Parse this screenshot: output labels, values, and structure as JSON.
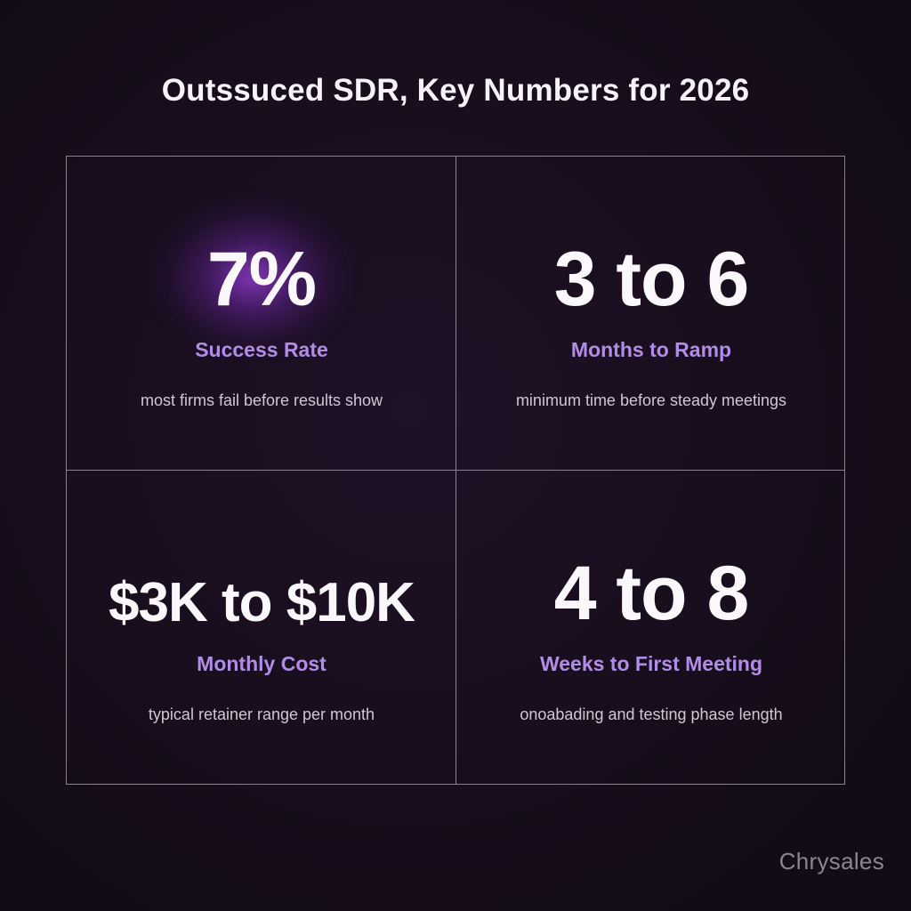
{
  "title": "Outssuced SDR, Key Numbers for 2026",
  "stats": [
    {
      "value": "7%",
      "label": "Success Rate",
      "description": "most firms fail before results show"
    },
    {
      "value": "3 to 6",
      "label": "Months to Ramp",
      "description": "minimum time before steady meetings"
    },
    {
      "value": "$3K to $10K",
      "label": "Monthly Cost",
      "description": "typical retainer range per month"
    },
    {
      "value": "4 to 8",
      "label": "Weeks to First Meeting",
      "description": "onoabading and testing phase length"
    }
  ],
  "brand": "Chrysales",
  "colors": {
    "background": "#170d1c",
    "accent": "#b18de8",
    "glow": "#9a3cd8",
    "grid_line": "#8b8193"
  }
}
